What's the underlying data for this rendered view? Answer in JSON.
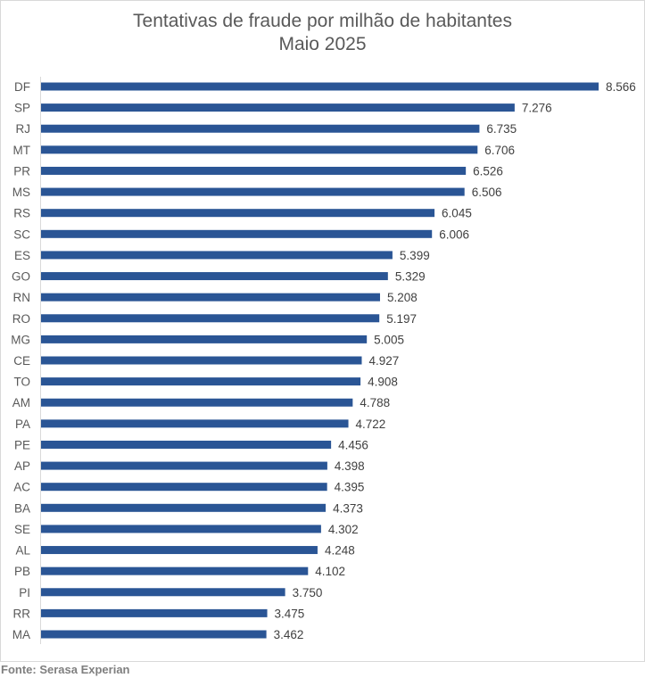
{
  "chart_data": {
    "type": "bar",
    "orientation": "horizontal",
    "title": "Tentativas de fraude por milhão de habitantes",
    "subtitle": "Maio 2025",
    "categories": [
      "DF",
      "SP",
      "RJ",
      "MT",
      "PR",
      "MS",
      "RS",
      "SC",
      "ES",
      "GO",
      "RN",
      "RO",
      "MG",
      "CE",
      "TO",
      "AM",
      "PA",
      "PE",
      "AP",
      "AC",
      "BA",
      "SE",
      "AL",
      "PB",
      "PI",
      "RR",
      "MA"
    ],
    "values": [
      8566,
      7276,
      6735,
      6706,
      6526,
      6506,
      6045,
      6006,
      5399,
      5329,
      5208,
      5197,
      5005,
      4927,
      4908,
      4788,
      4722,
      4456,
      4398,
      4395,
      4373,
      4302,
      4248,
      4102,
      3750,
      3475,
      3462
    ],
    "data_labels": [
      "8.566",
      "7.276",
      "6.735",
      "6.706",
      "6.526",
      "6.506",
      "6.045",
      "6.006",
      "5.399",
      "5.329",
      "5.208",
      "5.197",
      "5.005",
      "4.927",
      "4.908",
      "4.788",
      "4.722",
      "4.456",
      "4.398",
      "4.395",
      "4.373",
      "4.302",
      "4.248",
      "4.102",
      "3.750",
      "3.475",
      "3.462"
    ],
    "xlim": [
      0,
      8566
    ],
    "grid": false,
    "bar_color": "#2a5595"
  },
  "source": "Fonte: Serasa Experian"
}
